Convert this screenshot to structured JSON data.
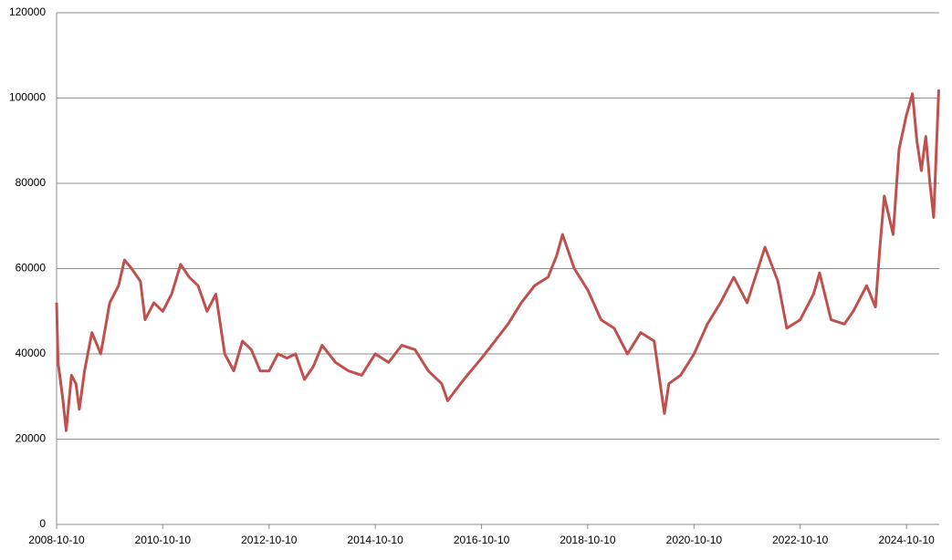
{
  "chart_data": {
    "type": "line",
    "color": "#c0504d",
    "grid": true,
    "x": [
      "2008-10-10",
      "2008-10-20",
      "2008-11-20",
      "2008-12-15",
      "2009-01-20",
      "2009-02-20",
      "2009-03-15",
      "2009-04-20",
      "2009-06-10",
      "2009-08-10",
      "2009-10-10",
      "2009-12-10",
      "2010-01-20",
      "2010-03-10",
      "2010-05-10",
      "2010-06-10",
      "2010-08-10",
      "2010-10-10",
      "2010-12-10",
      "2011-02-10",
      "2011-04-10",
      "2011-06-10",
      "2011-08-10",
      "2011-10-10",
      "2011-12-10",
      "2012-02-10",
      "2012-04-10",
      "2012-06-10",
      "2012-08-10",
      "2012-10-10",
      "2012-12-10",
      "2013-02-10",
      "2013-04-10",
      "2013-06-10",
      "2013-08-10",
      "2013-10-10",
      "2014-01-10",
      "2014-04-10",
      "2014-07-10",
      "2014-10-10",
      "2015-01-10",
      "2015-04-10",
      "2015-07-10",
      "2015-10-10",
      "2016-01-10",
      "2016-02-20",
      "2016-06-10",
      "2016-10-10",
      "2017-01-10",
      "2017-04-10",
      "2017-07-10",
      "2017-10-10",
      "2018-01-10",
      "2018-03-10",
      "2018-04-20",
      "2018-07-10",
      "2018-10-10",
      "2019-01-10",
      "2019-04-10",
      "2019-07-10",
      "2019-10-10",
      "2020-01-10",
      "2020-03-20",
      "2020-04-20",
      "2020-07-10",
      "2020-10-10",
      "2021-01-10",
      "2021-04-10",
      "2021-07-10",
      "2021-10-10",
      "2022-02-10",
      "2022-05-10",
      "2022-07-10",
      "2022-10-10",
      "2023-01-10",
      "2023-02-20",
      "2023-05-10",
      "2023-08-10",
      "2023-10-10",
      "2024-01-10",
      "2024-03-10",
      "2024-04-10",
      "2024-05-10",
      "2024-07-10",
      "2024-08-20",
      "2024-10-10",
      "2024-11-20",
      "2024-12-20",
      "2025-01-20",
      "2025-02-20",
      "2025-03-20",
      "2025-04-15",
      "2025-05-20"
    ],
    "values": [
      52000,
      38000,
      30000,
      22000,
      35000,
      33000,
      27000,
      36000,
      45000,
      40000,
      52000,
      56000,
      62000,
      60000,
      57000,
      48000,
      52000,
      50000,
      54000,
      61000,
      58000,
      56000,
      50000,
      54000,
      40000,
      36000,
      43000,
      41000,
      36000,
      36000,
      40000,
      39000,
      40000,
      34000,
      37000,
      42000,
      38000,
      36000,
      35000,
      40000,
      38000,
      42000,
      41000,
      36000,
      33000,
      29000,
      34000,
      39000,
      43000,
      47000,
      52000,
      56000,
      58000,
      63000,
      68000,
      60000,
      55000,
      48000,
      46000,
      40000,
      45000,
      43000,
      26000,
      33000,
      35000,
      40000,
      47000,
      52000,
      58000,
      52000,
      65000,
      57000,
      46000,
      48000,
      54000,
      59000,
      48000,
      47000,
      50000,
      56000,
      51000,
      65000,
      77000,
      68000,
      88000,
      96000,
      101000,
      90000,
      83000,
      91000,
      80000,
      72000,
      102000
    ],
    "xlim": [
      "2008-10-10",
      "2025-05-23"
    ],
    "xticks": [
      "2008-10-10",
      "2010-10-10",
      "2012-10-10",
      "2014-10-10",
      "2016-10-10",
      "2018-10-10",
      "2020-10-10",
      "2022-10-10",
      "2024-10-10"
    ],
    "ylim": [
      0,
      120000
    ],
    "yticks": [
      0,
      20000,
      40000,
      60000,
      80000,
      100000,
      120000
    ]
  }
}
